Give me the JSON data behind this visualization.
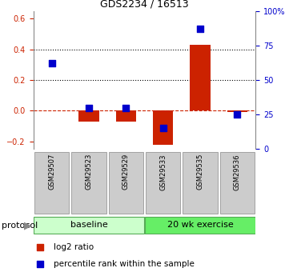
{
  "title": "GDS2234 / 16513",
  "samples": [
    "GSM29507",
    "GSM29523",
    "GSM29529",
    "GSM29533",
    "GSM29535",
    "GSM29536"
  ],
  "log2_ratio": [
    0.0,
    -0.07,
    -0.07,
    -0.22,
    0.43,
    -0.01
  ],
  "pct_rank_values": [
    62,
    30,
    30,
    15,
    87,
    25
  ],
  "ylim_left": [
    -0.25,
    0.65
  ],
  "ylim_right": [
    0,
    100
  ],
  "yticks_left": [
    -0.2,
    0.0,
    0.2,
    0.4,
    0.6
  ],
  "yticks_right": [
    0,
    25,
    50,
    75,
    100
  ],
  "bar_color": "#cc2200",
  "dot_color": "#0000cc",
  "baseline_label": "baseline",
  "exercise_label": "20 wk exercise",
  "protocol_label": "protocol",
  "legend_bar_label": "log2 ratio",
  "legend_dot_label": "percentile rank within the sample",
  "baseline_color": "#ccffcc",
  "exercise_color": "#66ee66",
  "sample_box_color": "#cccccc",
  "hline_zero_color": "#cc2200",
  "grid_color": "#000000",
  "grid_dotted_vals": [
    0.2,
    0.4
  ],
  "bar_width": 0.55
}
